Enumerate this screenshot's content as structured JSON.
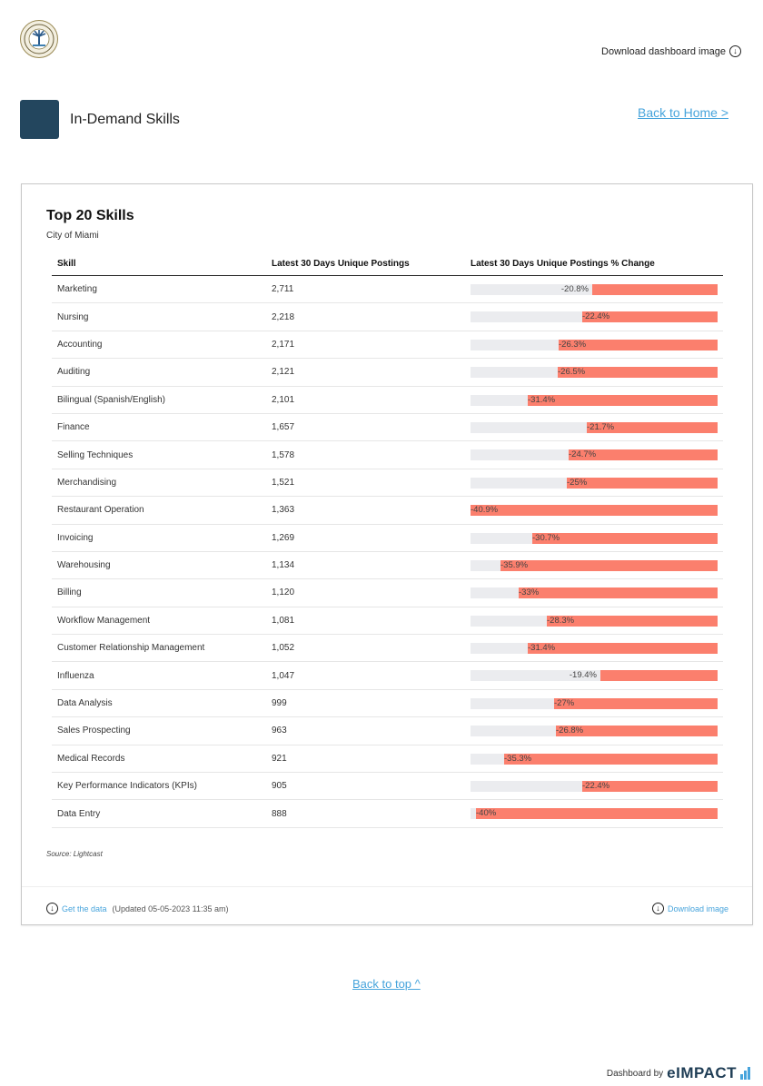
{
  "header": {
    "download_dashboard_label": "Download dashboard image",
    "section_title": "In-Demand Skills",
    "back_home_label": "Back to Home >"
  },
  "card": {
    "title": "Top 20 Skills",
    "subtitle": "City of Miami",
    "source": "Source: Lightcast",
    "get_data_label": "Get the data",
    "updated_text": "(Updated 05-05-2023 11:35 am)",
    "download_image_label": "Download image"
  },
  "chart_data": {
    "type": "table",
    "columns": [
      "Skill",
      "Latest 30 Days Unique Postings",
      "Latest 30 Days Unique Postings % Change"
    ],
    "rows": [
      {
        "skill": "Marketing",
        "postings": "2,711",
        "change": -20.8,
        "change_label": "-20.8%"
      },
      {
        "skill": "Nursing",
        "postings": "2,218",
        "change": -22.4,
        "change_label": "-22.4%"
      },
      {
        "skill": "Accounting",
        "postings": "2,171",
        "change": -26.3,
        "change_label": "-26.3%"
      },
      {
        "skill": "Auditing",
        "postings": "2,121",
        "change": -26.5,
        "change_label": "-26.5%"
      },
      {
        "skill": "Bilingual (Spanish/English)",
        "postings": "2,101",
        "change": -31.4,
        "change_label": "-31.4%"
      },
      {
        "skill": "Finance",
        "postings": "1,657",
        "change": -21.7,
        "change_label": "-21.7%"
      },
      {
        "skill": "Selling Techniques",
        "postings": "1,578",
        "change": -24.7,
        "change_label": "-24.7%"
      },
      {
        "skill": "Merchandising",
        "postings": "1,521",
        "change": -25,
        "change_label": "-25%"
      },
      {
        "skill": "Restaurant Operation",
        "postings": "1,363",
        "change": -40.9,
        "change_label": "-40.9%"
      },
      {
        "skill": "Invoicing",
        "postings": "1,269",
        "change": -30.7,
        "change_label": "-30.7%"
      },
      {
        "skill": "Warehousing",
        "postings": "1,134",
        "change": -35.9,
        "change_label": "-35.9%"
      },
      {
        "skill": "Billing",
        "postings": "1,120",
        "change": -33,
        "change_label": "-33%"
      },
      {
        "skill": "Workflow Management",
        "postings": "1,081",
        "change": -28.3,
        "change_label": "-28.3%"
      },
      {
        "skill": "Customer Relationship Management",
        "postings": "1,052",
        "change": -31.4,
        "change_label": "-31.4%"
      },
      {
        "skill": "Influenza",
        "postings": "1,047",
        "change": -19.4,
        "change_label": "-19.4%"
      },
      {
        "skill": "Data Analysis",
        "postings": "999",
        "change": -27,
        "change_label": "-27%"
      },
      {
        "skill": "Sales Prospecting",
        "postings": "963",
        "change": -26.8,
        "change_label": "-26.8%"
      },
      {
        "skill": "Medical Records",
        "postings": "921",
        "change": -35.3,
        "change_label": "-35.3%"
      },
      {
        "skill": "Key Performance Indicators (KPIs)",
        "postings": "905",
        "change": -22.4,
        "change_label": "-22.4%"
      },
      {
        "skill": "Data Entry",
        "postings": "888",
        "change": -40,
        "change_label": "-40%"
      }
    ],
    "bar_min": -40.9,
    "bar_max": 0,
    "colors": {
      "bar": "#fb7f6d",
      "track": "#ebecef"
    }
  },
  "footer": {
    "back_top_label": "Back to top ^",
    "brand_prefix": "Dashboard by",
    "brand_name": "eIMPACT"
  },
  "colors": {
    "accent": "#47a4dc",
    "section_icon": "#23465e"
  },
  "icons": {
    "download": "download-circle-icon",
    "logo": "city-seal-logo"
  }
}
